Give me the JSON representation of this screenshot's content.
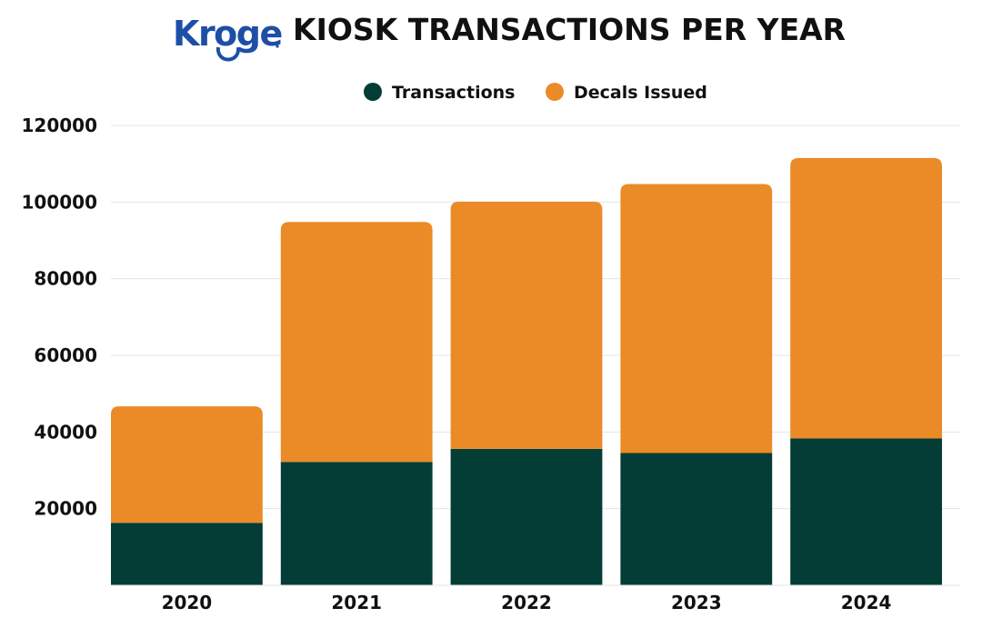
{
  "header": {
    "logo_text": "Kroger",
    "title": "KIOSK TRANSACTIONS PER YEAR"
  },
  "colors": {
    "transactions": "#033d35",
    "decals": "#ea8b27",
    "grid": "#e4e4e4",
    "text": "#111111",
    "logo": "#1e4fa7"
  },
  "chart_data": {
    "type": "bar",
    "stacked": true,
    "title": "KIOSK TRANSACTIONS PER YEAR",
    "categories": [
      "2020",
      "2021",
      "2022",
      "2023",
      "2024"
    ],
    "series": [
      {
        "name": "Transactions",
        "color": "#033d35",
        "values": [
          16300,
          32200,
          35600,
          34500,
          38300
        ]
      },
      {
        "name": "Decals Issued",
        "color": "#ea8b27",
        "values": [
          30400,
          62600,
          64500,
          70200,
          73200
        ]
      }
    ],
    "ylim": [
      0,
      120000
    ],
    "yticks": [
      "20000",
      "40000",
      "60000",
      "80000",
      "100000",
      "120000"
    ],
    "grid": true,
    "legend_position": "top-center",
    "xlabel": "",
    "ylabel": ""
  }
}
